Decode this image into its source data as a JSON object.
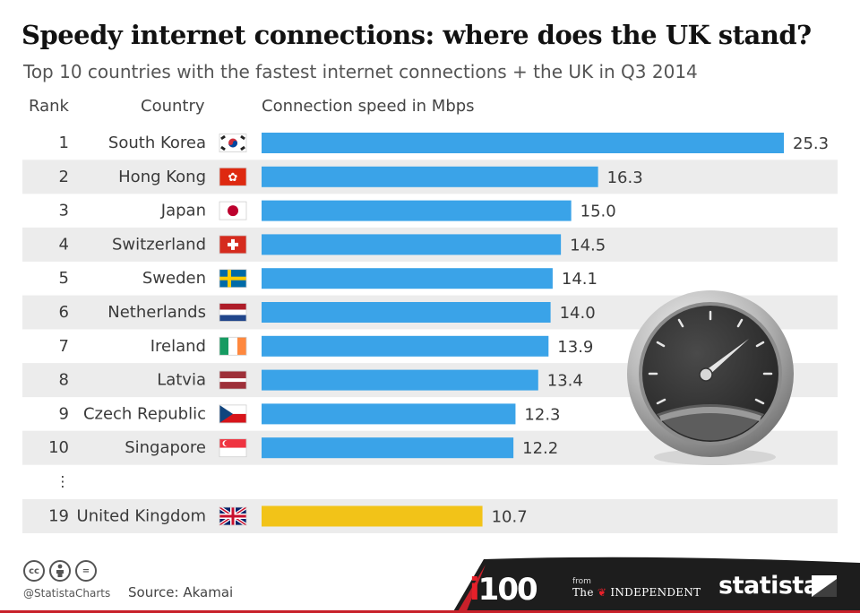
{
  "title": "Speedy internet connections: where does the UK stand?",
  "subtitle": "Top 10 countries with the fastest internet connections + the UK in Q3 2014",
  "columns": {
    "rank": "Rank",
    "country": "Country",
    "speed": "Connection speed in Mbps"
  },
  "ellipsis": "⋮",
  "colors": {
    "bar": "#3aa3e8",
    "highlight": "#f2c318",
    "stripe": "#ececec",
    "footer": "#1d1d1d",
    "accent_red": "#c8202a"
  },
  "chart_data": {
    "type": "bar",
    "orientation": "horizontal",
    "ylabel": "Connection speed in Mbps",
    "xlim": [
      0,
      25.3
    ],
    "rows": [
      {
        "rank": "1",
        "country": "South Korea",
        "value": 25.3,
        "label": "25.3",
        "flag": "south-korea",
        "highlight": false
      },
      {
        "rank": "2",
        "country": "Hong Kong",
        "value": 16.3,
        "label": "16.3",
        "flag": "hong-kong",
        "highlight": false
      },
      {
        "rank": "3",
        "country": "Japan",
        "value": 15.0,
        "label": "15.0",
        "flag": "japan",
        "highlight": false
      },
      {
        "rank": "4",
        "country": "Switzerland",
        "value": 14.5,
        "label": "14.5",
        "flag": "switzerland",
        "highlight": false
      },
      {
        "rank": "5",
        "country": "Sweden",
        "value": 14.1,
        "label": "14.1",
        "flag": "sweden",
        "highlight": false
      },
      {
        "rank": "6",
        "country": "Netherlands",
        "value": 14.0,
        "label": "14.0",
        "flag": "netherlands",
        "highlight": false
      },
      {
        "rank": "7",
        "country": "Ireland",
        "value": 13.9,
        "label": "13.9",
        "flag": "ireland",
        "highlight": false
      },
      {
        "rank": "8",
        "country": "Latvia",
        "value": 13.4,
        "label": "13.4",
        "flag": "latvia",
        "highlight": false
      },
      {
        "rank": "9",
        "country": "Czech Republic",
        "value": 12.3,
        "label": "12.3",
        "flag": "czech-republic",
        "highlight": false
      },
      {
        "rank": "10",
        "country": "Singapore",
        "value": 12.2,
        "label": "12.2",
        "flag": "singapore",
        "highlight": false
      },
      {
        "rank": "19",
        "country": "United Kingdom",
        "value": 10.7,
        "label": "10.7",
        "flag": "united-kingdom",
        "highlight": true
      }
    ]
  },
  "footer": {
    "handle": "@StatistaCharts",
    "source": "Source: Akamai",
    "license_icons": [
      "cc-icon",
      "by-icon",
      "nd-icon"
    ],
    "cc_text": "cc",
    "nd_text": "=",
    "i100_i": "i",
    "i100_num": "100",
    "from": "from",
    "independent_the": "The",
    "independent_name": "INDEPENDENT",
    "statista": "statista"
  }
}
